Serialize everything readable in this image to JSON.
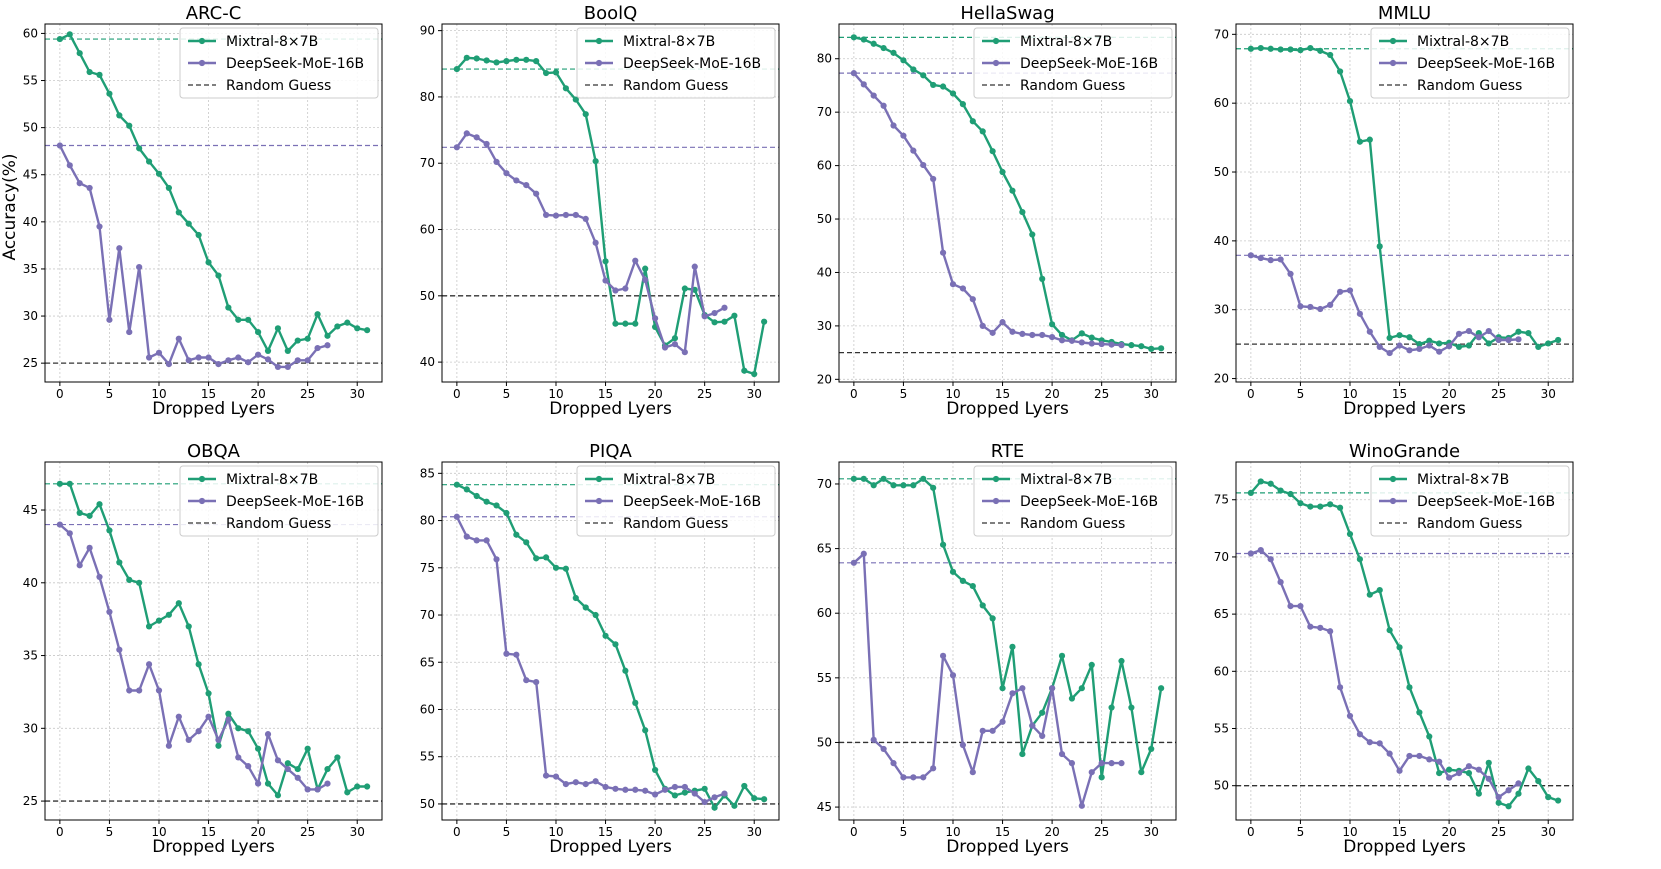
{
  "figure": {
    "ylabel": "Accuracy(%)"
  },
  "series_colors": {
    "mixtral": "#1f9e75",
    "deepseek": "#7a70b5",
    "random": "#333333"
  },
  "chart_data": [
    {
      "type": "line",
      "title": "ARC-C",
      "xlabel": "Dropped Lyers",
      "ylabel": "Accuracy(%)",
      "xlim": [
        -1.5,
        32.5
      ],
      "ylim": [
        23,
        61
      ],
      "xticks": [
        0,
        5,
        10,
        15,
        20,
        25,
        30
      ],
      "yticks": [
        25,
        30,
        35,
        40,
        45,
        50,
        55,
        60
      ],
      "legend": [
        "Mixtral-8×7B",
        "DeepSeek-MoE-16B",
        "Random Guess"
      ],
      "baselines": {
        "mixtral": 59.4,
        "deepseek": 48.1,
        "random": 25
      },
      "series": [
        {
          "name": "Mixtral-8×7B",
          "values": [
            59.4,
            59.9,
            57.9,
            55.9,
            55.6,
            53.6,
            51.3,
            50.2,
            47.8,
            46.4,
            45.1,
            43.6,
            41.0,
            39.8,
            38.6,
            35.7,
            34.3,
            30.9,
            29.6,
            29.6,
            28.3,
            26.3,
            28.7,
            26.3,
            27.4,
            27.6,
            30.2,
            27.9,
            28.9,
            29.3,
            28.7,
            28.5
          ]
        },
        {
          "name": "DeepSeek-MoE-16B",
          "values": [
            48.1,
            46.0,
            44.1,
            43.6,
            39.5,
            29.6,
            37.2,
            28.3,
            35.2,
            25.6,
            26.1,
            24.9,
            27.6,
            25.3,
            25.6,
            25.6,
            24.9,
            25.3,
            25.6,
            25.1,
            25.9,
            25.4,
            24.6,
            24.6,
            25.3,
            25.3,
            26.6,
            26.9
          ]
        }
      ]
    },
    {
      "type": "line",
      "title": "BoolQ",
      "xlabel": "Dropped Lyers",
      "xlim": [
        -1.5,
        32.5
      ],
      "ylim": [
        37,
        91
      ],
      "xticks": [
        0,
        5,
        10,
        15,
        20,
        25,
        30
      ],
      "yticks": [
        40,
        50,
        60,
        70,
        80,
        90
      ],
      "legend": [
        "Mixtral-8×7B",
        "DeepSeek-MoE-16B",
        "Random Guess"
      ],
      "baselines": {
        "mixtral": 84.2,
        "deepseek": 72.4,
        "random": 50
      },
      "series": [
        {
          "name": "Mixtral-8×7B",
          "values": [
            84.2,
            85.9,
            85.8,
            85.5,
            85.2,
            85.4,
            85.6,
            85.6,
            85.4,
            83.6,
            83.7,
            81.3,
            79.6,
            77.4,
            70.3,
            55.2,
            45.8,
            45.8,
            45.8,
            54.1,
            45.3,
            42.5,
            43.6,
            51.1,
            50.9,
            47.1,
            46.0,
            46.1,
            47.0,
            38.7,
            38.2,
            46.1
          ]
        },
        {
          "name": "DeepSeek-MoE-16B",
          "values": [
            72.4,
            74.5,
            73.9,
            72.9,
            70.2,
            68.5,
            67.4,
            66.7,
            65.4,
            62.2,
            62.1,
            62.2,
            62.2,
            61.6,
            58.0,
            52.3,
            50.8,
            51.1,
            55.3,
            52.4,
            46.6,
            42.2,
            42.7,
            41.5,
            54.4,
            46.9,
            47.4,
            48.2
          ]
        }
      ]
    },
    {
      "type": "line",
      "title": "HellaSwag",
      "xlabel": "Dropped Lyers",
      "xlim": [
        -1.5,
        32.5
      ],
      "ylim": [
        19.5,
        86.5
      ],
      "xticks": [
        0,
        5,
        10,
        15,
        20,
        25,
        30
      ],
      "yticks": [
        20,
        30,
        40,
        50,
        60,
        70,
        80
      ],
      "legend": [
        "Mixtral-8×7B",
        "DeepSeek-MoE-16B",
        "Random Guess"
      ],
      "baselines": {
        "mixtral": 84.0,
        "deepseek": 77.3,
        "random": 25
      },
      "series": [
        {
          "name": "Mixtral-8×7B",
          "values": [
            84.0,
            83.6,
            82.8,
            82.0,
            81.1,
            79.7,
            78.0,
            76.9,
            75.1,
            74.8,
            73.5,
            71.5,
            68.3,
            66.4,
            62.7,
            58.8,
            55.3,
            51.3,
            47.1,
            38.8,
            30.3,
            28.3,
            27.3,
            28.6,
            27.8,
            27.3,
            27.0,
            26.6,
            26.4,
            26.2,
            25.7,
            25.8
          ]
        },
        {
          "name": "DeepSeek-MoE-16B",
          "values": [
            77.3,
            75.2,
            73.1,
            71.2,
            67.5,
            65.6,
            62.8,
            60.1,
            57.5,
            43.7,
            37.8,
            37.0,
            35.0,
            30.0,
            28.7,
            30.7,
            28.9,
            28.5,
            28.3,
            28.3,
            27.9,
            27.3,
            27.2,
            26.9,
            26.7,
            26.6,
            26.5,
            26.4
          ]
        }
      ]
    },
    {
      "type": "line",
      "title": "MMLU",
      "xlabel": "Dropped Lyers",
      "xlim": [
        -1.5,
        32.5
      ],
      "ylim": [
        19.5,
        71.5
      ],
      "xticks": [
        0,
        5,
        10,
        15,
        20,
        25,
        30
      ],
      "yticks": [
        20,
        30,
        40,
        50,
        60,
        70
      ],
      "legend": [
        "Mixtral-8×7B",
        "DeepSeek-MoE-16B",
        "Random Guess"
      ],
      "baselines": {
        "mixtral": 67.9,
        "deepseek": 37.9,
        "random": 25
      },
      "series": [
        {
          "name": "Mixtral-8×7B",
          "values": [
            67.9,
            68.0,
            67.9,
            67.8,
            67.8,
            67.7,
            68.0,
            67.6,
            67.0,
            64.6,
            60.3,
            54.4,
            54.7,
            39.2,
            25.9,
            26.3,
            26.0,
            25.0,
            25.5,
            25.1,
            25.2,
            24.6,
            24.8,
            26.6,
            25.1,
            26.0,
            25.9,
            26.8,
            26.6,
            24.6,
            25.1,
            25.6
          ]
        },
        {
          "name": "DeepSeek-MoE-16B",
          "values": [
            37.9,
            37.5,
            37.2,
            37.3,
            35.2,
            30.5,
            30.4,
            30.1,
            30.7,
            32.6,
            32.8,
            29.4,
            26.8,
            24.6,
            23.7,
            24.8,
            24.1,
            24.3,
            24.8,
            23.9,
            24.7,
            26.5,
            26.9,
            26.0,
            26.9,
            25.6,
            25.6,
            25.7
          ]
        }
      ]
    },
    {
      "type": "line",
      "title": "OBQA",
      "xlabel": "Dropped Lyers",
      "xlim": [
        -1.5,
        32.5
      ],
      "ylim": [
        23.7,
        48.3
      ],
      "xticks": [
        0,
        5,
        10,
        15,
        20,
        25,
        30
      ],
      "yticks": [
        25,
        30,
        35,
        40,
        45
      ],
      "legend": [
        "Mixtral-8×7B",
        "DeepSeek-MoE-16B",
        "Random Guess"
      ],
      "baselines": {
        "mixtral": 46.8,
        "deepseek": 44.0,
        "random": 25
      },
      "series": [
        {
          "name": "Mixtral-8×7B",
          "values": [
            46.8,
            46.8,
            44.8,
            44.6,
            45.4,
            43.6,
            41.4,
            40.2,
            40.0,
            37.0,
            37.4,
            37.8,
            38.6,
            37.0,
            34.4,
            32.4,
            28.8,
            31.0,
            30.0,
            29.8,
            28.6,
            26.2,
            25.4,
            27.6,
            27.2,
            28.6,
            25.8,
            27.2,
            28.0,
            25.6,
            26.0,
            26.0
          ]
        },
        {
          "name": "DeepSeek-MoE-16B",
          "values": [
            44.0,
            43.4,
            41.2,
            42.4,
            40.4,
            38.0,
            35.4,
            32.6,
            32.6,
            34.4,
            32.6,
            28.8,
            30.8,
            29.2,
            29.8,
            30.8,
            29.2,
            30.6,
            28.0,
            27.4,
            26.2,
            29.6,
            27.8,
            27.2,
            26.6,
            25.8,
            25.8,
            26.2
          ]
        }
      ]
    },
    {
      "type": "line",
      "title": "PIQA",
      "xlabel": "Dropped Lyers",
      "xlim": [
        -1.5,
        32.5
      ],
      "ylim": [
        48.3,
        86.2
      ],
      "xticks": [
        0,
        5,
        10,
        15,
        20,
        25,
        30
      ],
      "yticks": [
        50,
        55,
        60,
        65,
        70,
        75,
        80,
        85
      ],
      "legend": [
        "Mixtral-8×7B",
        "DeepSeek-MoE-16B",
        "Random Guess"
      ],
      "baselines": {
        "mixtral": 83.8,
        "deepseek": 80.4,
        "random": 50
      },
      "series": [
        {
          "name": "Mixtral-8×7B",
          "values": [
            83.8,
            83.3,
            82.6,
            82.0,
            81.6,
            80.8,
            78.5,
            77.7,
            76.0,
            76.1,
            75.0,
            74.9,
            71.8,
            70.8,
            70.0,
            67.8,
            66.9,
            64.1,
            60.7,
            57.8,
            53.6,
            51.6,
            50.9,
            51.2,
            51.4,
            51.6,
            49.6,
            50.9,
            49.8,
            51.9,
            50.6,
            50.5
          ]
        },
        {
          "name": "DeepSeek-MoE-16B",
          "values": [
            80.4,
            78.3,
            77.9,
            77.9,
            75.9,
            65.9,
            65.8,
            63.1,
            62.9,
            53.0,
            52.9,
            52.1,
            52.3,
            52.1,
            52.4,
            51.8,
            51.6,
            51.5,
            51.5,
            51.4,
            51.0,
            51.5,
            51.8,
            51.8,
            51.1,
            50.2,
            50.7,
            51.1
          ]
        }
      ]
    },
    {
      "type": "line",
      "title": "RTE",
      "xlabel": "Dropped Lyers",
      "xlim": [
        -1.5,
        32.5
      ],
      "ylim": [
        44.0,
        71.7
      ],
      "xticks": [
        0,
        5,
        10,
        15,
        20,
        25,
        30
      ],
      "yticks": [
        45,
        50,
        55,
        60,
        65,
        70
      ],
      "legend": [
        "Mixtral-8×7B",
        "DeepSeek-MoE-16B",
        "Random Guess"
      ],
      "baselines": {
        "mixtral": 70.4,
        "deepseek": 63.9,
        "random": 50
      },
      "series": [
        {
          "name": "Mixtral-8×7B",
          "values": [
            70.4,
            70.4,
            69.9,
            70.4,
            69.9,
            69.9,
            69.9,
            70.4,
            69.7,
            65.3,
            63.2,
            62.5,
            62.1,
            60.6,
            59.6,
            54.2,
            57.4,
            49.1,
            51.3,
            52.3,
            54.2,
            56.7,
            53.4,
            54.2,
            56.0,
            47.3,
            52.7,
            56.3,
            52.7,
            47.7,
            49.5,
            54.2
          ]
        },
        {
          "name": "DeepSeek-MoE-16B",
          "values": [
            63.9,
            64.6,
            50.2,
            49.5,
            48.4,
            47.3,
            47.3,
            47.3,
            48.0,
            56.7,
            55.2,
            49.8,
            47.7,
            50.9,
            50.9,
            51.6,
            53.8,
            54.2,
            51.3,
            50.5,
            54.2,
            49.1,
            48.4,
            45.1,
            47.7,
            48.4,
            48.4,
            48.4
          ]
        }
      ]
    },
    {
      "type": "line",
      "title": "WinoGrande",
      "xlabel": "Dropped Lyers",
      "xlim": [
        -1.5,
        32.5
      ],
      "ylim": [
        47.0,
        78.3
      ],
      "xticks": [
        0,
        5,
        10,
        15,
        20,
        25,
        30
      ],
      "yticks": [
        50,
        55,
        60,
        65,
        70,
        75
      ],
      "legend": [
        "Mixtral-8×7B",
        "DeepSeek-MoE-16B",
        "Random Guess"
      ],
      "baselines": {
        "mixtral": 75.6,
        "deepseek": 70.3,
        "random": 50
      },
      "series": [
        {
          "name": "Mixtral-8×7B",
          "values": [
            75.6,
            76.6,
            76.4,
            75.8,
            75.5,
            74.7,
            74.4,
            74.4,
            74.6,
            74.3,
            72.0,
            69.8,
            66.7,
            67.1,
            63.6,
            62.1,
            58.6,
            56.4,
            54.3,
            51.1,
            51.4,
            51.3,
            51.1,
            49.3,
            52.0,
            48.5,
            48.2,
            49.3,
            51.5,
            50.4,
            49.0,
            48.7
          ]
        },
        {
          "name": "DeepSeek-MoE-16B",
          "values": [
            70.3,
            70.6,
            69.8,
            67.8,
            65.7,
            65.7,
            63.9,
            63.8,
            63.5,
            58.6,
            56.1,
            54.5,
            53.8,
            53.7,
            52.8,
            51.3,
            52.6,
            52.6,
            52.3,
            52.1,
            50.7,
            51.1,
            51.7,
            51.4,
            50.6,
            49.0,
            49.6,
            50.2
          ]
        }
      ]
    }
  ]
}
